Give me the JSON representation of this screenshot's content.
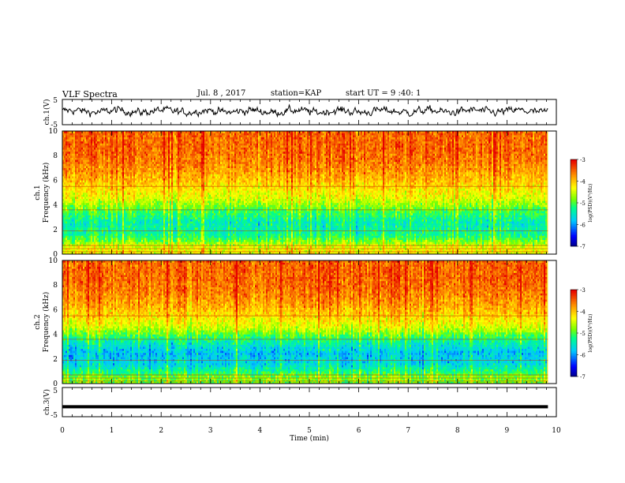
{
  "header": {
    "title": "VLF Spectra",
    "date": "Jul. 8 , 2017",
    "station": "station=KAP",
    "start": "start UT = 9 :40: 1"
  },
  "chart_data": [
    {
      "type": "line",
      "panel": "ch1-waveform",
      "ylabel": "ch.1(V)",
      "ylim": [
        -5,
        5
      ],
      "yticks": [
        "5",
        "-5"
      ],
      "xlim": [
        0,
        10
      ],
      "x_extent": [
        0,
        9.83
      ],
      "description_values": {
        "mean": 0.3,
        "amplitude": 2.6
      }
    },
    {
      "type": "heatmap",
      "panel": "ch1-spectrogram",
      "ylabel": "ch.1",
      "ylabel2": "Frequency (kHz)",
      "ylim": [
        0,
        10
      ],
      "yticks": [
        "0",
        "2",
        "4",
        "6",
        "8",
        "10"
      ],
      "xlim": [
        0,
        10
      ],
      "colorbar": {
        "label": "log(PSD)(V²/Hz)",
        "range": [
          -7,
          -3
        ],
        "ticks": [
          "-3",
          "-4",
          "-5",
          "-6",
          "-7"
        ]
      },
      "profile": [
        {
          "freq_khz": 0.5,
          "log_psd": -4.3
        },
        {
          "freq_khz": 1.5,
          "log_psd": -5.2
        },
        {
          "freq_khz": 2.5,
          "log_psd": -5.4
        },
        {
          "freq_khz": 3.5,
          "log_psd": -5.0
        },
        {
          "freq_khz": 4.5,
          "log_psd": -4.4
        },
        {
          "freq_khz": 5.5,
          "log_psd": -4.1
        },
        {
          "freq_khz": 6.5,
          "log_psd": -3.8
        },
        {
          "freq_khz": 7.5,
          "log_psd": -3.6
        },
        {
          "freq_khz": 8.5,
          "log_psd": -3.5
        },
        {
          "freq_khz": 9.5,
          "log_psd": -3.5
        }
      ]
    },
    {
      "type": "heatmap",
      "panel": "ch2-spectrogram",
      "ylabel": "ch.2",
      "ylabel2": "Frequency (kHz)",
      "ylim": [
        0,
        10
      ],
      "yticks": [
        "0",
        "2",
        "4",
        "6",
        "8",
        "10"
      ],
      "xlim": [
        0,
        10
      ],
      "colorbar": {
        "label": "log(PSD)(V²/Hz)",
        "range": [
          -7,
          -3
        ],
        "ticks": [
          "-3",
          "-4",
          "-5",
          "-6",
          "-7"
        ]
      },
      "profile": [
        {
          "freq_khz": 0.5,
          "log_psd": -4.8
        },
        {
          "freq_khz": 1.5,
          "log_psd": -5.6
        },
        {
          "freq_khz": 2.5,
          "log_psd": -5.8
        },
        {
          "freq_khz": 3.5,
          "log_psd": -5.3
        },
        {
          "freq_khz": 4.5,
          "log_psd": -4.5
        },
        {
          "freq_khz": 5.5,
          "log_psd": -4.1
        },
        {
          "freq_khz": 6.5,
          "log_psd": -3.8
        },
        {
          "freq_khz": 7.5,
          "log_psd": -3.6
        },
        {
          "freq_khz": 8.5,
          "log_psd": -3.5
        },
        {
          "freq_khz": 9.5,
          "log_psd": -3.5
        }
      ]
    },
    {
      "type": "line",
      "panel": "ch3-waveform",
      "ylabel": "ch.3(V)",
      "ylim": [
        -5,
        5
      ],
      "yticks": [
        "5",
        "-5"
      ],
      "xlim": [
        0,
        10
      ],
      "x_extent": [
        0,
        9.83
      ],
      "values_constant": -1.6,
      "xlabel": "Time (min)",
      "xticks": [
        "0",
        "1",
        "2",
        "3",
        "4",
        "5",
        "6",
        "7",
        "8",
        "9",
        "10"
      ]
    }
  ]
}
